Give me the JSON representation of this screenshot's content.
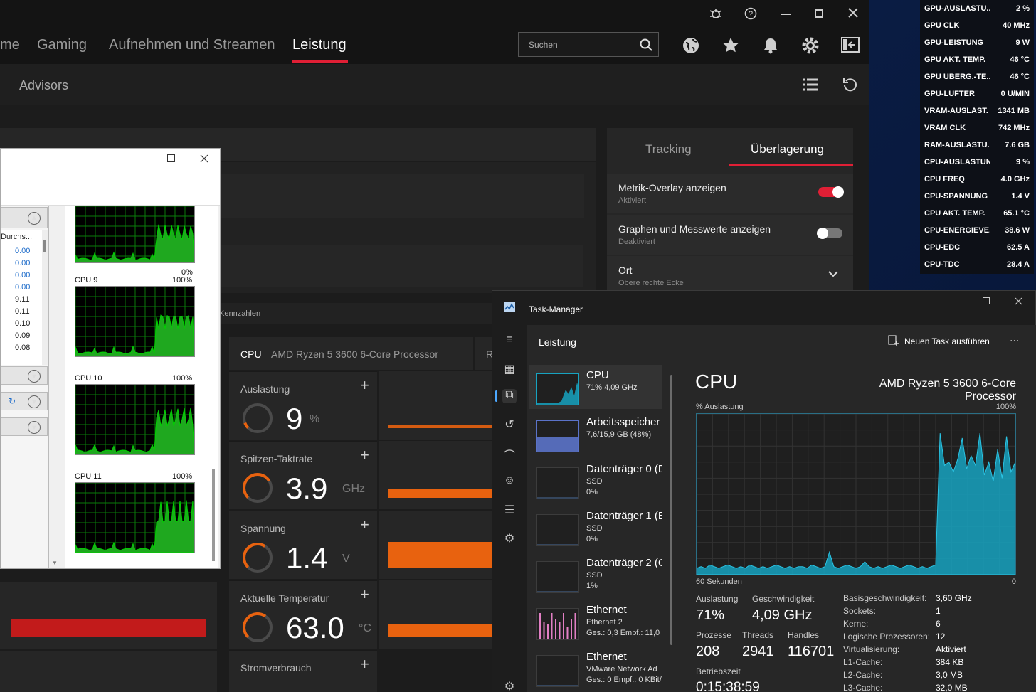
{
  "amd": {
    "tabs": [
      "me",
      "Gaming",
      "Aufnehmen und Streamen",
      "Leistung"
    ],
    "sub_tab": "Advisors",
    "search_placeholder": "Suchen",
    "side_tabs": {
      "tracking": "Tracking",
      "overlay": "Überlagerung"
    },
    "settings": [
      {
        "title": "Metrik-Overlay anzeigen",
        "status": "Aktiviert",
        "on": true
      },
      {
        "title": "Graphen und Messwerte anzeigen",
        "status": "Deaktiviert",
        "on": false
      },
      {
        "title": "Ort",
        "status": "Obere rechte Ecke"
      }
    ],
    "section_label": "Kennzahlen",
    "cpu_label": "CPU",
    "cpu_name": "AMD Ryzen 5 3600 6-Core Processor",
    "cpu_extra": "R",
    "tiles": [
      {
        "title": "Auslastung",
        "value": "9",
        "unit": "%",
        "gauge": 0.09
      },
      {
        "title": "Spitzen-Taktrate",
        "value": "3.9",
        "unit": "GHz",
        "gauge": 0.72
      },
      {
        "title": "Spannung",
        "value": "1.4",
        "unit": "V",
        "gauge": 0.62
      },
      {
        "title": "Aktuelle Temperatur",
        "value": "63.0",
        "unit": "°C",
        "gauge": 0.63
      },
      {
        "title": "Stromverbrauch",
        "value": "",
        "unit": ""
      }
    ]
  },
  "overlay": [
    {
      "k": "GPU-AUSLASTU...",
      "v": "2 %"
    },
    {
      "k": "GPU CLK",
      "v": "40 MHz"
    },
    {
      "k": "GPU-LEISTUNG",
      "v": "9 W"
    },
    {
      "k": "GPU AKT. TEMP.",
      "v": "46 °C"
    },
    {
      "k": "GPU ÜBERG.-TE...",
      "v": "46 °C"
    },
    {
      "k": "GPU-LÜFTER",
      "v": "0 U/MIN"
    },
    {
      "k": "VRAM-AUSLAST.",
      "v": "1341 MB"
    },
    {
      "k": "VRAM CLK",
      "v": "742 MHz"
    },
    {
      "k": "RAM-AUSLASTU...",
      "v": "7.6 GB"
    },
    {
      "k": "CPU-AUSLASTUNG",
      "v": "9 %"
    },
    {
      "k": "CPU FREQ",
      "v": "4.0 GHz"
    },
    {
      "k": "CPU-SPANNUNG",
      "v": "1.4 V"
    },
    {
      "k": "CPU AKT. TEMP.",
      "v": "65.1 °C"
    },
    {
      "k": "CPU-ENERGIEVE...",
      "v": "38.6 W"
    },
    {
      "k": "CPU-EDC",
      "v": "62.5 A"
    },
    {
      "k": "CPU-TDC",
      "v": "28.4 A"
    }
  ],
  "legacy": {
    "col_header": "Durchs...",
    "values": [
      "0.00",
      "0.00",
      "0.00",
      "0.00",
      "9.11",
      "0.11",
      "0.10",
      "0.09",
      "0.08"
    ],
    "graphs": [
      {
        "label": "",
        "max": "",
        "min": "0%"
      },
      {
        "label": "CPU 9",
        "max": "100%",
        "min": "0%"
      },
      {
        "label": "CPU 10",
        "max": "100%",
        "min": "0%"
      },
      {
        "label": "CPU 11",
        "max": "100%",
        "min": "0%"
      }
    ]
  },
  "taskmgr": {
    "title": "Task-Manager",
    "section": "Leistung",
    "new_task": "Neuen Task ausführen",
    "more": "...",
    "side": [
      {
        "name": "CPU",
        "sub1": "71% 4,09 GHz",
        "sub2": "",
        "sub3": ""
      },
      {
        "name": "Arbeitsspeicher",
        "sub1": "7,6/15,9 GB (48%)",
        "sub2": "",
        "sub3": ""
      },
      {
        "name": "Datenträger 0 (D",
        "sub1": "SSD",
        "sub2": "0%",
        "sub3": ""
      },
      {
        "name": "Datenträger 1 (E",
        "sub1": "SSD",
        "sub2": "0%",
        "sub3": ""
      },
      {
        "name": "Datenträger 2 (C",
        "sub1": "SSD",
        "sub2": "1%",
        "sub3": ""
      },
      {
        "name": "Ethernet",
        "sub1": "Ethernet 2",
        "sub2": "Ges.: 0,3 Empf.: 11,0",
        "sub3": ""
      },
      {
        "name": "Ethernet",
        "sub1": "VMware Network Ad",
        "sub2": "Ges.: 0 Empf.: 0 KBit/",
        "sub3": ""
      }
    ],
    "main_title": "CPU",
    "main_cpu": "AMD Ryzen 5 3600 6-Core Processor",
    "graph_label": "% Auslastung",
    "graph_max": "100%",
    "graph_time": "60 Sekunden",
    "graph_min": "0",
    "stats": {
      "util_label": "Auslastung",
      "util": "71%",
      "speed_label": "Geschwindigkeit",
      "speed": "4,09 GHz",
      "proc_label": "Prozesse",
      "proc": "208",
      "thr_label": "Threads",
      "thr": "2941",
      "hand_label": "Handles",
      "hand": "116701",
      "up_label": "Betriebszeit",
      "up": "0:15:38:59"
    },
    "info": [
      {
        "k": "Basisgeschwindigkeit:",
        "v": "3,60 GHz"
      },
      {
        "k": "Sockets:",
        "v": "1"
      },
      {
        "k": "Kerne:",
        "v": "6"
      },
      {
        "k": "Logische Prozessoren:",
        "v": "12"
      },
      {
        "k": "Virtualisierung:",
        "v": "Aktiviert"
      },
      {
        "k": "L1-Cache:",
        "v": "384 KB"
      },
      {
        "k": "L2-Cache:",
        "v": "3,0 MB"
      },
      {
        "k": "L3-Cache:",
        "v": "32,0 MB"
      }
    ],
    "cpu_history": [
      4,
      5,
      4,
      6,
      5,
      4,
      5,
      6,
      5,
      4,
      5,
      4,
      6,
      5,
      4,
      5,
      4,
      5,
      6,
      5,
      4,
      5,
      4,
      5,
      5,
      4,
      6,
      5,
      4,
      5,
      14,
      5,
      4,
      5,
      6,
      5,
      4,
      5,
      8,
      5,
      4,
      5,
      4,
      5,
      6,
      5,
      4,
      5,
      6,
      5,
      4,
      5,
      4,
      5,
      6,
      88,
      68,
      70,
      64,
      72,
      85,
      66,
      74,
      68,
      88,
      62,
      70,
      58,
      78,
      60,
      86,
      64,
      70
    ]
  },
  "colors": {
    "accent": "#e01f35",
    "amd_orange": "#e8620f",
    "tm_graph": "#17a3c1",
    "legacy_graph": "#00d000"
  }
}
